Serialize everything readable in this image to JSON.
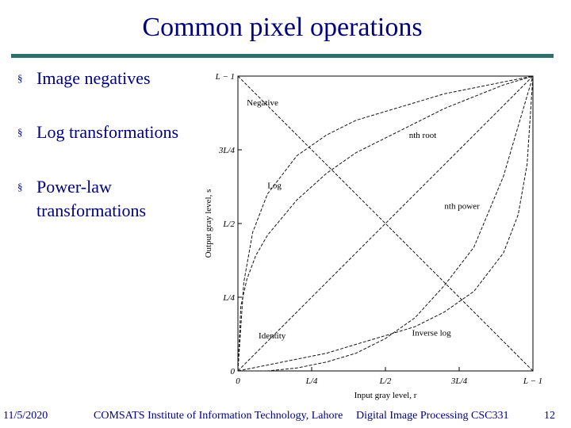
{
  "slide": {
    "title": "Common pixel operations",
    "bullets": [
      {
        "marker": "§",
        "text": "Image negatives"
      },
      {
        "marker": "§",
        "text": "Log transformations"
      },
      {
        "marker": "§",
        "text": "Power-law transformations"
      }
    ],
    "footer": {
      "date": "11/5/2020",
      "institute": "COMSATS Institute of Information Technology, Lahore",
      "course": "Digital Image Processing CSC331",
      "page": "12"
    }
  },
  "chart_data": {
    "type": "line",
    "xlabel": "Input gray level, r",
    "ylabel": "Output gray level, s",
    "xlim": [
      0,
      1
    ],
    "ylim": [
      0,
      1
    ],
    "x_ticks": [
      0,
      0.25,
      0.5,
      0.75,
      1
    ],
    "x_tick_labels": [
      "0",
      "L/4",
      "L/2",
      "3L/4",
      "L − 1"
    ],
    "y_ticks": [
      0,
      0.25,
      0.5,
      0.75,
      1
    ],
    "y_tick_labels": [
      "0",
      "L/4",
      "L/2",
      "3L/4",
      "L − 1"
    ],
    "series": [
      {
        "name": "Negative",
        "label_at": [
          0.03,
          0.9
        ],
        "x": [
          0,
          0.25,
          0.5,
          0.75,
          1
        ],
        "y": [
          1,
          0.75,
          0.5,
          0.25,
          0
        ]
      },
      {
        "name": "Identity",
        "label_at": [
          0.07,
          0.11
        ],
        "x": [
          0,
          0.25,
          0.5,
          0.75,
          1
        ],
        "y": [
          0,
          0.25,
          0.5,
          0.75,
          1
        ]
      },
      {
        "name": "Log",
        "label_at": [
          0.1,
          0.62
        ],
        "x": [
          0,
          0.02,
          0.05,
          0.1,
          0.2,
          0.3,
          0.4,
          0.5,
          0.6,
          0.7,
          0.8,
          0.9,
          1
        ],
        "y": [
          0,
          0.3,
          0.47,
          0.6,
          0.73,
          0.8,
          0.85,
          0.88,
          0.91,
          0.94,
          0.96,
          0.98,
          1
        ]
      },
      {
        "name": "Inverse log",
        "label_at": [
          0.59,
          0.12
        ],
        "x": [
          0,
          0.1,
          0.2,
          0.3,
          0.4,
          0.5,
          0.6,
          0.7,
          0.8,
          0.9,
          0.95,
          0.98,
          1
        ],
        "y": [
          0,
          0.02,
          0.04,
          0.06,
          0.09,
          0.12,
          0.15,
          0.2,
          0.27,
          0.4,
          0.53,
          0.7,
          1
        ]
      },
      {
        "name": "nth root",
        "label_at": [
          0.58,
          0.79
        ],
        "x": [
          0,
          0.01,
          0.03,
          0.06,
          0.1,
          0.2,
          0.3,
          0.4,
          0.5,
          0.6,
          0.7,
          0.8,
          0.9,
          1
        ],
        "y": [
          0,
          0.22,
          0.31,
          0.39,
          0.46,
          0.58,
          0.67,
          0.74,
          0.79,
          0.84,
          0.89,
          0.93,
          0.97,
          1
        ]
      },
      {
        "name": "nth power",
        "label_at": [
          0.7,
          0.55
        ],
        "x": [
          0,
          0.1,
          0.2,
          0.3,
          0.4,
          0.5,
          0.6,
          0.7,
          0.8,
          0.9,
          1
        ],
        "y": [
          0,
          0.0,
          0.01,
          0.03,
          0.06,
          0.11,
          0.18,
          0.29,
          0.42,
          0.66,
          1
        ]
      }
    ]
  }
}
